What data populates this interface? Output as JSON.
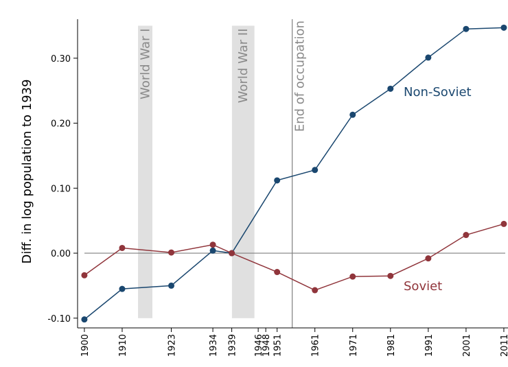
{
  "chart_data": {
    "type": "line",
    "ylabel": "Diff. in log population to 1939",
    "x": [
      1900,
      1910,
      1923,
      1934,
      1939,
      1951,
      1961,
      1971,
      1981,
      1991,
      2001,
      2011
    ],
    "series": [
      {
        "name": "Non-Soviet",
        "color": "#1a476f",
        "values": [
          -0.102,
          -0.055,
          -0.05,
          0.004,
          0,
          0.112,
          0.128,
          0.213,
          0.253,
          0.301,
          0.345,
          0.347
        ]
      },
      {
        "name": "Soviet",
        "color": "#90353b",
        "values": [
          -0.034,
          0.008,
          0.001,
          0.013,
          0,
          -0.029,
          -0.057,
          -0.036,
          -0.035,
          -0.008,
          0.028,
          0.045
        ]
      }
    ],
    "xlim": [
      1898.2,
      2012.1
    ],
    "ylim": [
      -0.115,
      0.36
    ],
    "xticks": [
      1900,
      1910,
      1923,
      1934,
      1939,
      1946,
      1948,
      1951,
      1961,
      1971,
      1981,
      1991,
      2001,
      2011
    ],
    "yticks": [
      {
        "value": -0.1,
        "label": "-0.10"
      },
      {
        "value": 0,
        "label": "0.00"
      },
      {
        "value": 0.1,
        "label": "0.10"
      },
      {
        "value": 0.2,
        "label": "0.20"
      },
      {
        "value": 0.3,
        "label": "0.30"
      }
    ],
    "reference_line_y": 0,
    "shaded_periods": [
      {
        "label": "World War I",
        "start": 1914.2,
        "end": 1918,
        "ymin": -0.1,
        "ymax": 0.35
      },
      {
        "label": "World War II",
        "start": 1939.05,
        "end": 1945,
        "ymin": -0.1,
        "ymax": 0.35
      }
    ],
    "vline": {
      "label": "End of occupation",
      "x": 1955
    }
  }
}
